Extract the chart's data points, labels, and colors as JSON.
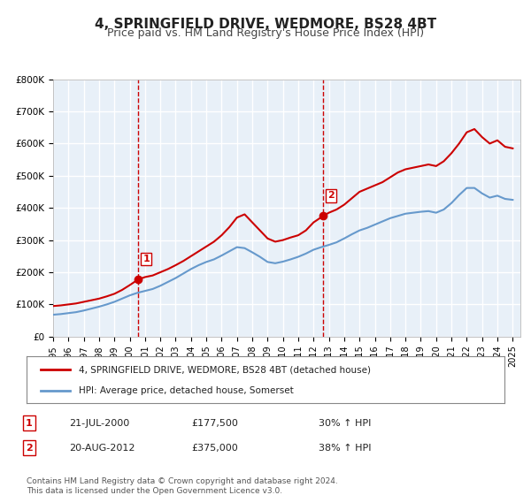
{
  "title": "4, SPRINGFIELD DRIVE, WEDMORE, BS28 4BT",
  "subtitle": "Price paid vs. HM Land Registry's House Price Index (HPI)",
  "title_fontsize": 11,
  "subtitle_fontsize": 9,
  "background_color": "#ffffff",
  "plot_bg_color": "#e8f0f8",
  "grid_color": "#ffffff",
  "ylim": [
    0,
    800000
  ],
  "xlim_start": 1995.0,
  "xlim_end": 2025.5,
  "yticks": [
    0,
    100000,
    200000,
    300000,
    400000,
    500000,
    600000,
    700000,
    800000
  ],
  "ytick_labels": [
    "£0",
    "£100K",
    "£200K",
    "£300K",
    "£400K",
    "£500K",
    "£600K",
    "£700K",
    "£800K"
  ],
  "xticks": [
    1995,
    1996,
    1997,
    1998,
    1999,
    2000,
    2001,
    2002,
    2003,
    2004,
    2005,
    2006,
    2007,
    2008,
    2009,
    2010,
    2011,
    2012,
    2013,
    2014,
    2015,
    2016,
    2017,
    2018,
    2019,
    2020,
    2021,
    2022,
    2023,
    2024,
    2025
  ],
  "sale1_x": 2000.55,
  "sale1_y": 177500,
  "sale1_label": "1",
  "sale2_x": 2012.63,
  "sale2_y": 375000,
  "sale2_label": "2",
  "red_line_color": "#cc0000",
  "blue_line_color": "#6699cc",
  "vline_color": "#cc0000",
  "marker_color": "#cc0000",
  "legend_property": "4, SPRINGFIELD DRIVE, WEDMORE, BS28 4BT (detached house)",
  "legend_hpi": "HPI: Average price, detached house, Somerset",
  "table_entries": [
    {
      "num": "1",
      "date": "21-JUL-2000",
      "price": "£177,500",
      "change": "30% ↑ HPI"
    },
    {
      "num": "2",
      "date": "20-AUG-2012",
      "price": "£375,000",
      "change": "38% ↑ HPI"
    }
  ],
  "footer": "Contains HM Land Registry data © Crown copyright and database right 2024.\nThis data is licensed under the Open Government Licence v3.0.",
  "red_x": [
    1995.0,
    1995.5,
    1996.0,
    1996.5,
    1997.0,
    1997.5,
    1998.0,
    1998.5,
    1999.0,
    1999.5,
    2000.0,
    2000.55,
    2001.0,
    2001.5,
    2002.0,
    2002.5,
    2003.0,
    2003.5,
    2004.0,
    2004.5,
    2005.0,
    2005.5,
    2006.0,
    2006.5,
    2007.0,
    2007.5,
    2008.0,
    2008.5,
    2009.0,
    2009.5,
    2010.0,
    2010.5,
    2011.0,
    2011.5,
    2012.0,
    2012.63,
    2013.0,
    2013.5,
    2014.0,
    2014.5,
    2015.0,
    2015.5,
    2016.0,
    2016.5,
    2017.0,
    2017.5,
    2018.0,
    2018.5,
    2019.0,
    2019.5,
    2020.0,
    2020.5,
    2021.0,
    2021.5,
    2022.0,
    2022.5,
    2023.0,
    2023.5,
    2024.0,
    2024.5,
    2025.0
  ],
  "red_y": [
    95000,
    97000,
    100000,
    103000,
    108000,
    113000,
    118000,
    125000,
    133000,
    145000,
    160000,
    177500,
    185000,
    190000,
    200000,
    210000,
    222000,
    235000,
    250000,
    265000,
    280000,
    295000,
    315000,
    340000,
    370000,
    380000,
    355000,
    330000,
    305000,
    295000,
    300000,
    308000,
    315000,
    330000,
    355000,
    375000,
    385000,
    395000,
    410000,
    430000,
    450000,
    460000,
    470000,
    480000,
    495000,
    510000,
    520000,
    525000,
    530000,
    535000,
    530000,
    545000,
    570000,
    600000,
    635000,
    645000,
    620000,
    600000,
    610000,
    590000,
    585000
  ],
  "blue_x": [
    1995.0,
    1995.5,
    1996.0,
    1996.5,
    1997.0,
    1997.5,
    1998.0,
    1998.5,
    1999.0,
    1999.5,
    2000.0,
    2000.5,
    2001.0,
    2001.5,
    2002.0,
    2002.5,
    2003.0,
    2003.5,
    2004.0,
    2004.5,
    2005.0,
    2005.5,
    2006.0,
    2006.5,
    2007.0,
    2007.5,
    2008.0,
    2008.5,
    2009.0,
    2009.5,
    2010.0,
    2010.5,
    2011.0,
    2011.5,
    2012.0,
    2012.5,
    2013.0,
    2013.5,
    2014.0,
    2014.5,
    2015.0,
    2015.5,
    2016.0,
    2016.5,
    2017.0,
    2017.5,
    2018.0,
    2018.5,
    2019.0,
    2019.5,
    2020.0,
    2020.5,
    2021.0,
    2021.5,
    2022.0,
    2022.5,
    2023.0,
    2023.5,
    2024.0,
    2024.5,
    2025.0
  ],
  "blue_y": [
    68000,
    70000,
    73000,
    76000,
    81000,
    87000,
    93000,
    100000,
    108000,
    118000,
    128000,
    136000,
    142000,
    148000,
    158000,
    170000,
    182000,
    196000,
    210000,
    222000,
    232000,
    240000,
    252000,
    265000,
    278000,
    275000,
    262000,
    248000,
    232000,
    228000,
    233000,
    240000,
    248000,
    258000,
    270000,
    278000,
    285000,
    293000,
    305000,
    318000,
    330000,
    338000,
    348000,
    358000,
    368000,
    375000,
    382000,
    385000,
    388000,
    390000,
    385000,
    395000,
    415000,
    440000,
    462000,
    462000,
    445000,
    432000,
    438000,
    428000,
    425000
  ]
}
